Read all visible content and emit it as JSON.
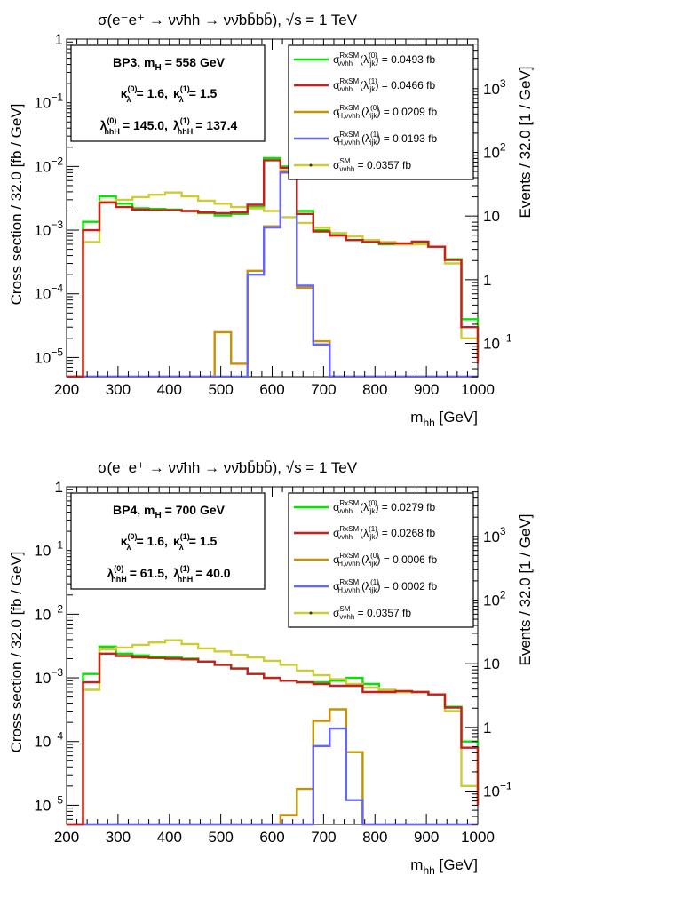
{
  "chart_data": [
    {
      "type": "line",
      "title": "σ(e⁻e⁺ → νν̄hh → νν̄bb̄bb̄),  √s = 1 TeV",
      "xlabel_main": "m",
      "xlabel_sub": "hh",
      "xlabel_unit": " [GeV]",
      "ylabel": "Cross section / 32.0 [fb / GeV]",
      "y2label": "Events / 32.0 [1 / GeV]",
      "xlim": [
        200,
        1000
      ],
      "ylim": [
        5e-06,
        1
      ],
      "y_scale": "log",
      "x_ticks": [
        200,
        300,
        400,
        500,
        600,
        700,
        800,
        900,
        1000
      ],
      "y_ticks": [
        {
          "v": 1,
          "b": "1",
          "e": ""
        },
        {
          "v": 0.1,
          "b": "10",
          "e": "−1"
        },
        {
          "v": 0.01,
          "b": "10",
          "e": "−2"
        },
        {
          "v": 0.001,
          "b": "10",
          "e": "−3"
        },
        {
          "v": 0.0001,
          "b": "10",
          "e": "−4"
        },
        {
          "v": 1e-05,
          "b": "10",
          "e": "−5"
        }
      ],
      "y2_ticks": [
        {
          "v": 0.01,
          "b": "10",
          "e": "3"
        },
        {
          "v": 0.001,
          "b": "10",
          "e": "2"
        },
        {
          "v": 0.0001,
          "b": "10",
          "e": ""
        },
        {
          "v": 1e-05,
          "b": "1",
          "e": ""
        },
        {
          "v": 1e-06,
          "b": "10",
          "e": "−1"
        }
      ],
      "bin_edges": [
        200,
        232,
        264,
        296,
        328,
        360,
        392,
        424,
        456,
        488,
        520,
        552,
        584,
        616,
        648,
        680,
        712,
        744,
        776,
        808,
        840,
        872,
        904,
        936,
        968,
        1000
      ],
      "info": {
        "line1": "BP3, m",
        "line1_sub": "H",
        "line1_rest": " = 558 GeV",
        "k0": "= 1.6,",
        "k1": "= 1.5",
        "l0": "= 145.0,",
        "l1": "= 137.4"
      },
      "series": [
        {
          "key": "green",
          "color": "#00e600",
          "legend_value": " = 0.0493 fb",
          "values": [
            0,
            0.00135,
            0.0034,
            0.0026,
            0.0022,
            0.00215,
            0.0021,
            0.002,
            0.00185,
            0.0017,
            0.0018,
            0.0023,
            0.0135,
            0.01,
            0.002,
            0.001,
            0.00085,
            0.0007,
            0.00065,
            0.0006,
            0.0006,
            0.00065,
            0.00055,
            0.00035,
            4e-05,
            1e-05
          ]
        },
        {
          "key": "red",
          "color": "#c81e1e",
          "legend_value": " = 0.0466 fb",
          "values": [
            0,
            0.001,
            0.0027,
            0.0023,
            0.0021,
            0.00205,
            0.00205,
            0.002,
            0.0019,
            0.00185,
            0.0019,
            0.0025,
            0.0125,
            0.0095,
            0.0018,
            0.00095,
            0.00082,
            0.0007,
            0.00065,
            0.00062,
            0.00062,
            0.00066,
            0.00055,
            0.00034,
            3e-05,
            8e-06
          ]
        },
        {
          "key": "orange",
          "color": "#c89100",
          "legend_value": " = 0.0209 fb",
          "values": [
            0,
            0,
            0,
            0,
            0,
            0,
            0,
            0,
            0,
            2.5e-05,
            8e-06,
            0.00023,
            0.00115,
            0.0085,
            0.000125,
            1.8e-05,
            4e-06,
            0,
            0,
            0,
            0,
            0,
            0,
            0,
            0
          ]
        },
        {
          "key": "blue",
          "color": "#6464ff",
          "legend_value": " = 0.0193 fb",
          "values": [
            0,
            0,
            0,
            0,
            0,
            0,
            0,
            0,
            0,
            0,
            5e-06,
            0.0002,
            0.0011,
            0.008,
            0.000135,
            1.6e-05,
            4e-06,
            0,
            0,
            0,
            0,
            0,
            0,
            0,
            0
          ]
        },
        {
          "key": "sm",
          "color": "#cccc33",
          "legend_value": " = 0.0357 fb",
          "values": [
            0,
            0.00065,
            0.0028,
            0.003,
            0.0033,
            0.0036,
            0.0039,
            0.0034,
            0.0029,
            0.0026,
            0.0023,
            0.0022,
            0.002,
            0.0016,
            0.0013,
            0.0011,
            0.0009,
            0.0008,
            0.0007,
            0.00065,
            0.0006,
            0.0006,
            0.00055,
            0.0003,
            2e-05,
            1e-05
          ]
        }
      ]
    },
    {
      "type": "line",
      "title": "σ(e⁻e⁺ → νν̄hh → νν̄bb̄bb̄),  √s = 1 TeV",
      "xlabel_main": "m",
      "xlabel_sub": "hh",
      "xlabel_unit": " [GeV]",
      "ylabel": "Cross section / 32.0 [fb / GeV]",
      "y2label": "Events / 32.0 [1 / GeV]",
      "xlim": [
        200,
        1000
      ],
      "ylim": [
        5e-06,
        1
      ],
      "y_scale": "log",
      "x_ticks": [
        200,
        300,
        400,
        500,
        600,
        700,
        800,
        900,
        1000
      ],
      "y_ticks": [
        {
          "v": 1,
          "b": "1",
          "e": ""
        },
        {
          "v": 0.1,
          "b": "10",
          "e": "−1"
        },
        {
          "v": 0.01,
          "b": "10",
          "e": "−2"
        },
        {
          "v": 0.001,
          "b": "10",
          "e": "−3"
        },
        {
          "v": 0.0001,
          "b": "10",
          "e": "−4"
        },
        {
          "v": 1e-05,
          "b": "10",
          "e": "−5"
        }
      ],
      "y2_ticks": [
        {
          "v": 0.01,
          "b": "10",
          "e": "3"
        },
        {
          "v": 0.001,
          "b": "10",
          "e": "2"
        },
        {
          "v": 0.0001,
          "b": "10",
          "e": ""
        },
        {
          "v": 1e-05,
          "b": "1",
          "e": ""
        },
        {
          "v": 1e-06,
          "b": "10",
          "e": "−1"
        }
      ],
      "bin_edges": [
        200,
        232,
        264,
        296,
        328,
        360,
        392,
        424,
        456,
        488,
        520,
        552,
        584,
        616,
        648,
        680,
        712,
        744,
        776,
        808,
        840,
        872,
        904,
        936,
        968,
        1000
      ],
      "info": {
        "line1": "BP4, m",
        "line1_sub": "H",
        "line1_rest": " = 700 GeV",
        "k0": "= 1.6,",
        "k1": "= 1.5",
        "l0": "= 61.5,",
        "l1": "= 40.0"
      },
      "series": [
        {
          "key": "green",
          "color": "#00e600",
          "legend_value": " = 0.0279 fb",
          "values": [
            0,
            0.00115,
            0.0031,
            0.0024,
            0.00225,
            0.00215,
            0.0021,
            0.002,
            0.0018,
            0.0016,
            0.0014,
            0.00115,
            0.001,
            0.0009,
            0.00085,
            0.00085,
            0.0009,
            0.001,
            0.0008,
            0.0006,
            0.0006,
            0.0006,
            0.00055,
            0.00035,
            0.0001,
            1.2e-05
          ]
        },
        {
          "key": "red",
          "color": "#c81e1e",
          "legend_value": " = 0.0268 fb",
          "values": [
            0,
            0.00085,
            0.0024,
            0.0022,
            0.0021,
            0.00205,
            0.002,
            0.00195,
            0.0018,
            0.0016,
            0.0014,
            0.00115,
            0.001,
            0.0009,
            0.00085,
            0.0008,
            0.00075,
            0.00075,
            0.0006,
            0.0006,
            0.00062,
            0.0006,
            0.00055,
            0.00034,
            8e-05,
            1e-05
          ]
        },
        {
          "key": "orange",
          "color": "#c89100",
          "legend_value": " = 0.0006 fb",
          "values": [
            0,
            0,
            0,
            0,
            0,
            0,
            0,
            0,
            0,
            0,
            0,
            0,
            0,
            7e-06,
            1.8e-05,
            0.00021,
            0.00032,
            6.8e-05,
            4e-06,
            0,
            0,
            0,
            0,
            0,
            0
          ]
        },
        {
          "key": "blue",
          "color": "#6464ff",
          "legend_value": " = 0.0002 fb",
          "values": [
            0,
            0,
            0,
            0,
            0,
            0,
            0,
            0,
            0,
            0,
            0,
            0,
            0,
            0,
            4e-06,
            8.5e-05,
            0.00016,
            1.2e-05,
            0,
            0,
            0,
            0,
            0,
            0,
            0
          ]
        },
        {
          "key": "sm",
          "color": "#cccc33",
          "legend_value": " = 0.0357 fb",
          "values": [
            0,
            0.00065,
            0.0028,
            0.003,
            0.0033,
            0.0036,
            0.0039,
            0.0034,
            0.0029,
            0.0026,
            0.0023,
            0.0021,
            0.00185,
            0.0016,
            0.0013,
            0.0011,
            0.00095,
            0.0008,
            0.0007,
            0.00065,
            0.0006,
            0.0006,
            0.00055,
            0.0003,
            2e-05,
            1e-05
          ]
        }
      ]
    }
  ]
}
